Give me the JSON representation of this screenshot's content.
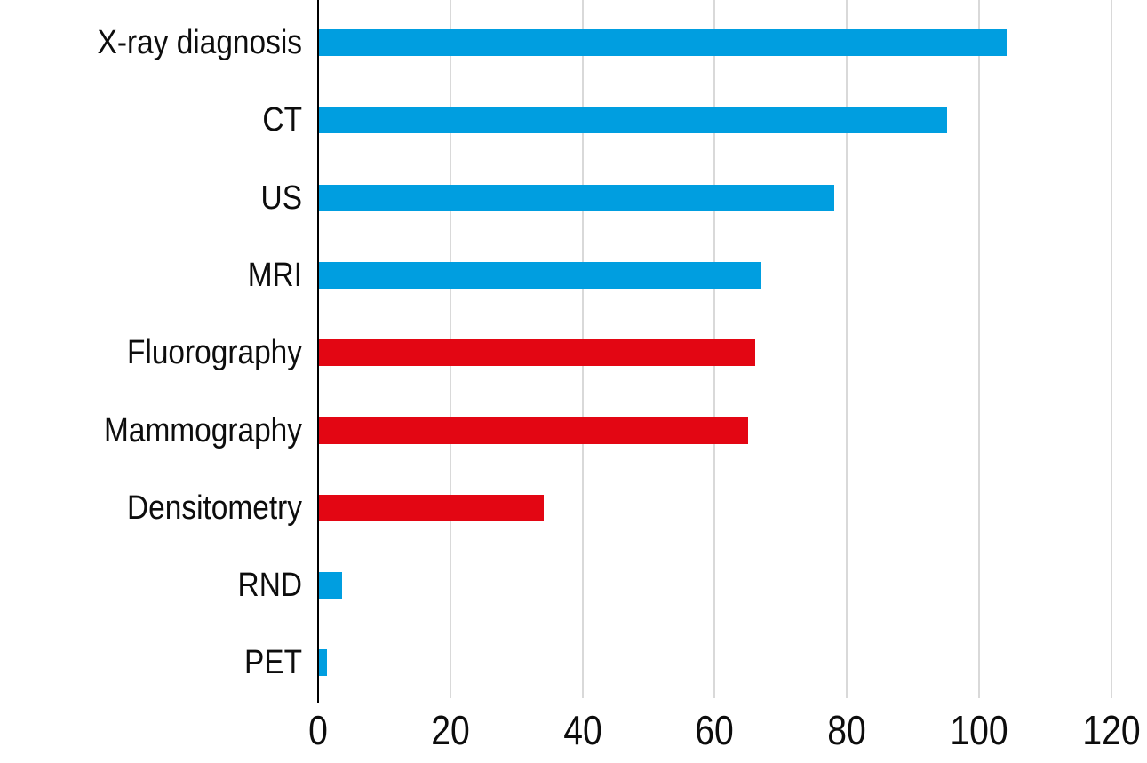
{
  "chart_data": {
    "type": "bar",
    "orientation": "horizontal",
    "title": "",
    "xlabel": "",
    "ylabel": "",
    "categories": [
      "X-ray diagnosis",
      "CT",
      "US",
      "MRI",
      "Fluorography",
      "Mammography",
      "Densitometry",
      "RND",
      "PET"
    ],
    "values": [
      104,
      95,
      78,
      67,
      66,
      65,
      34,
      3.5,
      1.2
    ],
    "bar_colors": [
      "#009EE0",
      "#009EE0",
      "#009EE0",
      "#009EE0",
      "#E30613",
      "#E30613",
      "#E30613",
      "#009EE0",
      "#009EE0"
    ],
    "x_ticks": [
      0,
      20,
      40,
      60,
      80,
      100,
      120
    ],
    "xlim": [
      0,
      120
    ],
    "grid": true,
    "legend": "none",
    "background": "#FFFFFF"
  },
  "colors": {
    "blue": "#009EE0",
    "red": "#E30613",
    "gridline": "#D9D9D9",
    "axis": "#000000",
    "text": "#0D0D0D",
    "background": "#FFFFFF"
  }
}
